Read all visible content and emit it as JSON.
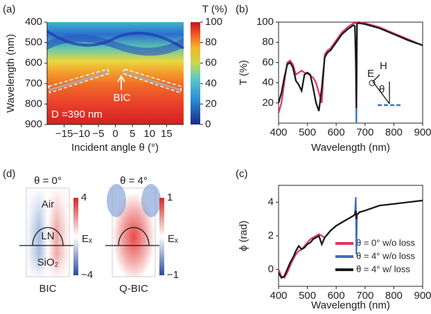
{
  "chart_data": [
    {
      "type": "heatmap",
      "panel": "(a)",
      "colorbar_title": "T (%)",
      "xlabel": "Incident angle θ (°)",
      "ylabel": "Wavelength (nm)",
      "xlim": [
        -20,
        20
      ],
      "xticks": [
        {
          "value": -15,
          "label": "−15"
        },
        {
          "value": -10,
          "label": "−10"
        },
        {
          "value": -5,
          "label": "−5"
        },
        0,
        5,
        10,
        15
      ],
      "ylim": [
        900,
        400
      ],
      "yticks": [
        400,
        500,
        600,
        700,
        800,
        900
      ],
      "clim": [
        0,
        100
      ],
      "cticks": [
        0,
        20,
        40,
        60,
        80,
        100
      ],
      "annotations": [
        "BIC",
        "D =390 nm"
      ]
    },
    {
      "type": "line",
      "panel": "(b)",
      "xlabel": "Wavelength (nm)",
      "ylabel": "T (%)",
      "xlim": [
        400,
        900
      ],
      "xticks": [
        400,
        500,
        600,
        700,
        800,
        900
      ],
      "ylim": [
        0,
        100
      ],
      "yticks": [
        20,
        40,
        60,
        80,
        100
      ],
      "annotations": [
        "E",
        "H",
        "θ"
      ],
      "x": [
        400,
        410,
        420,
        430,
        440,
        450,
        460,
        470,
        480,
        490,
        500,
        510,
        520,
        530,
        540,
        550,
        560,
        570,
        580,
        600,
        620,
        640,
        660,
        665,
        668,
        670,
        672,
        675,
        680,
        700,
        750,
        800,
        850,
        900
      ],
      "series": [
        {
          "color": "#e8325a",
          "values": [
            10,
            20,
            40,
            60,
            62,
            58,
            48,
            50,
            52,
            50,
            49,
            47,
            45,
            40,
            30,
            20,
            68,
            72,
            74,
            82,
            90,
            95,
            99,
            99,
            99,
            99,
            99,
            100,
            100,
            99,
            95,
            89,
            83,
            77
          ]
        },
        {
          "color": "#3b6fc4",
          "values": [
            20,
            30,
            45,
            58,
            60,
            55,
            42,
            38,
            32,
            48,
            50,
            48,
            35,
            20,
            12,
            35,
            65,
            70,
            72,
            80,
            88,
            93,
            97,
            96,
            60,
            0,
            98,
            99,
            99,
            98,
            94,
            88,
            82,
            77
          ]
        },
        {
          "color": "#1a1a1a",
          "values": [
            20,
            30,
            45,
            58,
            60,
            55,
            42,
            38,
            32,
            48,
            50,
            48,
            35,
            20,
            12,
            35,
            65,
            70,
            72,
            80,
            88,
            93,
            97,
            96,
            60,
            15,
            98,
            99,
            99,
            98,
            94,
            88,
            82,
            77
          ]
        }
      ]
    },
    {
      "type": "line",
      "panel": "(c)",
      "xlabel": "Wavelength (nm)",
      "ylabel": "ϕ (rad)",
      "xlim": [
        400,
        900
      ],
      "xticks": [
        400,
        500,
        600,
        700,
        800,
        900
      ],
      "ylim": [
        -1,
        5
      ],
      "yticks": [
        0,
        2,
        4
      ],
      "x": [
        400,
        410,
        420,
        430,
        440,
        450,
        460,
        470,
        480,
        490,
        500,
        510,
        520,
        530,
        540,
        550,
        560,
        570,
        580,
        600,
        620,
        640,
        660,
        665,
        668,
        670,
        672,
        675,
        680,
        700,
        750,
        800,
        850,
        900
      ],
      "series": [
        {
          "name": "θ = 0° w/o loss",
          "color": "#e8325a",
          "values": [
            0,
            -0.4,
            -0.5,
            -0.2,
            0.2,
            0.6,
            0.9,
            1.1,
            1.2,
            1.4,
            1.6,
            1.8,
            1.9,
            2.0,
            2.1,
            2.0,
            1.9,
            2.1,
            2.3,
            2.6,
            2.8,
            3.0,
            3.2,
            3.25,
            3.3,
            3.3,
            3.3,
            3.3,
            3.4,
            3.5,
            3.8,
            3.9,
            4.0,
            4.1
          ]
        },
        {
          "name": "θ = 4° w/o loss",
          "color": "#3b6fc4",
          "values": [
            -0.2,
            -0.5,
            -0.4,
            0,
            0.4,
            0.7,
            1.1,
            1.4,
            1.2,
            1.3,
            1.5,
            1.6,
            1.8,
            1.9,
            2.0,
            1.5,
            1.9,
            2.1,
            2.3,
            2.6,
            2.8,
            3.0,
            3.2,
            3.3,
            4.3,
            0.9,
            3.3,
            3.3,
            3.4,
            3.5,
            3.8,
            3.9,
            4.0,
            4.1
          ]
        },
        {
          "name": "θ = 4° w/ loss",
          "color": "#1a1a1a",
          "values": [
            -0.2,
            -0.5,
            -0.4,
            0,
            0.4,
            0.7,
            1.1,
            1.4,
            1.2,
            1.3,
            1.5,
            1.6,
            1.8,
            1.9,
            2.0,
            1.5,
            1.9,
            2.1,
            2.3,
            2.6,
            2.8,
            3.0,
            3.2,
            3.3,
            3.5,
            3.0,
            3.3,
            3.3,
            3.4,
            3.5,
            3.8,
            3.9,
            4.0,
            4.1
          ]
        }
      ]
    }
  ],
  "panel_d": {
    "panel": "(d)",
    "left": {
      "title": "θ = 0°",
      "caption": "BIC",
      "regions": [
        "Air",
        "LN",
        "SiO₂"
      ],
      "field": "Eₓ",
      "clim": [
        -4,
        4
      ],
      "cticks": [
        4,
        {
          "value": -4,
          "label": "−4"
        }
      ]
    },
    "right": {
      "title": "θ = 4°",
      "caption": "Q-BIC",
      "field": "Eₓ",
      "clim": [
        -1,
        1
      ],
      "cticks": [
        1,
        {
          "value": -1,
          "label": "−1"
        }
      ]
    }
  }
}
